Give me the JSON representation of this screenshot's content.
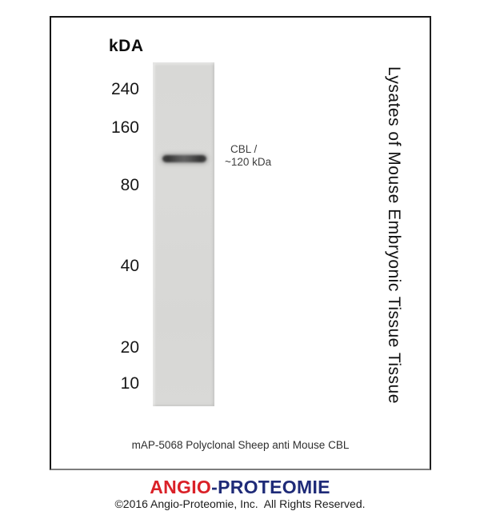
{
  "figure": {
    "unit_label": "kDA",
    "ladder_markers": [
      "240",
      "160",
      "80",
      "40",
      "20",
      "10"
    ],
    "band": {
      "label_line1": "CBL /",
      "label_line2": "~120 kDa",
      "approx_kda": 120,
      "ladder_position_between": [
        "160",
        "80"
      ]
    },
    "sample_label": "Lysates of Mouse Embryonic Tissue Tissue",
    "caption": "mAP-5068 Polyclonal Sheep anti Mouse CBL"
  },
  "footer": {
    "logo_part1": "ANGIO",
    "logo_hyphen": "-",
    "logo_part2": "PROTEOMIE",
    "copyright": "©2016 Angio-Proteomie, Inc.  All Rights Reserved.",
    "colors": {
      "logo_red": "#da2128",
      "logo_navy": "#1f2b78",
      "lane_gray": "#d8d8d6",
      "band_dark": "#404040"
    }
  }
}
